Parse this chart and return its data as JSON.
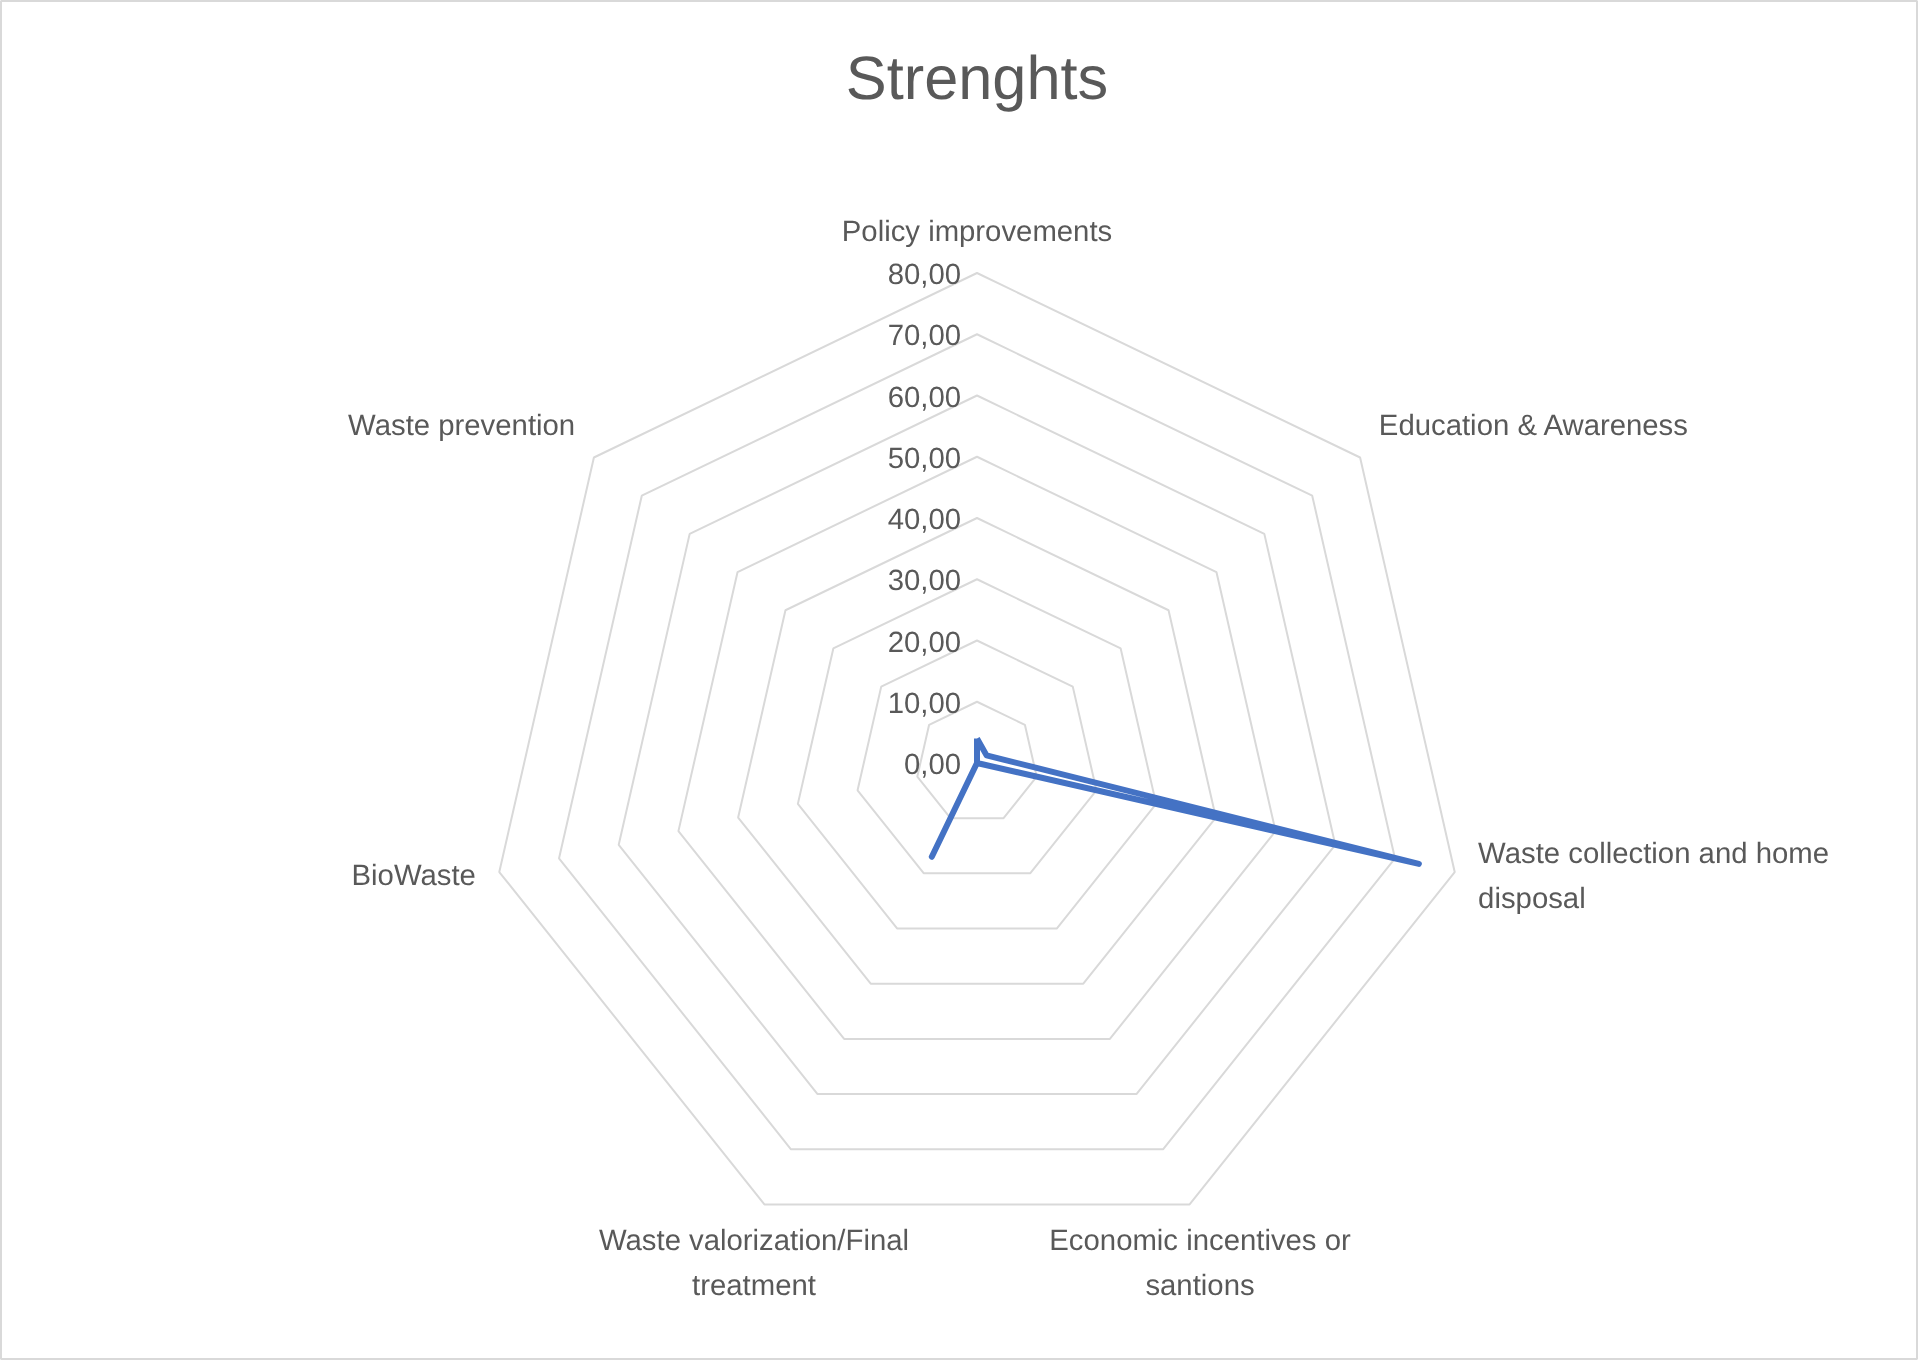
{
  "chart_data": {
    "type": "radar",
    "title": "Strenghts",
    "categories": [
      "Policy improvements",
      "Education & Awareness",
      "Waste collection and home disposal",
      "Economic incentives or santions",
      "Waste valorization/Final treatment",
      "BioWaste",
      "Waste prevention"
    ],
    "series": [
      {
        "color": "#4472c4",
        "values": [
          4,
          2,
          74,
          0,
          17,
          0,
          0
        ]
      }
    ],
    "ylim": [
      0,
      80
    ],
    "yticks": [
      {
        "value": 0,
        "label": "0,00"
      },
      {
        "value": 10,
        "label": "10,00"
      },
      {
        "value": 20,
        "label": "20,00"
      },
      {
        "value": 30,
        "label": "30,00"
      },
      {
        "value": 40,
        "label": "40,00"
      },
      {
        "value": 50,
        "label": "50,00"
      },
      {
        "value": 60,
        "label": "60,00"
      },
      {
        "value": 70,
        "label": "70,00"
      },
      {
        "value": 80,
        "label": "80,00"
      }
    ],
    "grid": true
  }
}
